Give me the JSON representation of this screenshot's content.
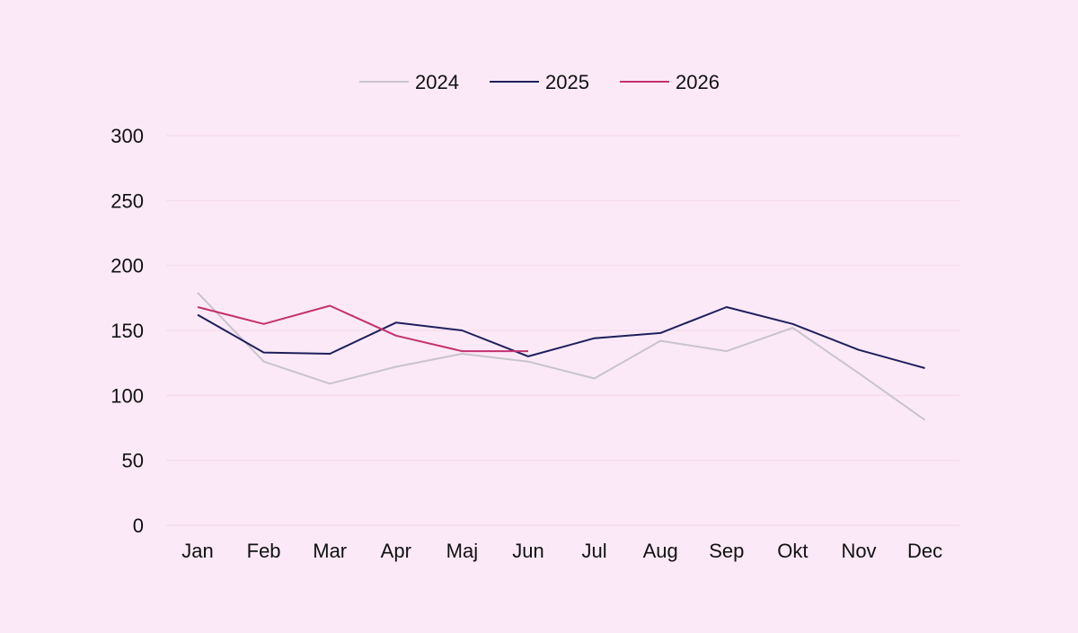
{
  "chart_data": {
    "type": "line",
    "categories": [
      "Jan",
      "Feb",
      "Mar",
      "Apr",
      "Maj",
      "Jun",
      "Jul",
      "Aug",
      "Sep",
      "Okt",
      "Nov",
      "Dec"
    ],
    "series": [
      {
        "name": "2024",
        "color": "#c9c4ca",
        "values": [
          179,
          126,
          109,
          122,
          132,
          126,
          113,
          142,
          134,
          152,
          117,
          81
        ]
      },
      {
        "name": "2025",
        "color": "#1f1f5c",
        "values": [
          162,
          133,
          132,
          156,
          150,
          130,
          144,
          148,
          168,
          155,
          135,
          121
        ]
      },
      {
        "name": "2026",
        "color": "#c4316f",
        "values": [
          168,
          155,
          169,
          146,
          134,
          134,
          null,
          null,
          null,
          null,
          null,
          null
        ]
      }
    ],
    "ylim": [
      0,
      300
    ],
    "yticks": [
      0,
      50,
      100,
      150,
      200,
      250,
      300
    ],
    "grid": true,
    "legend_position": "top-center",
    "xlabel": "",
    "ylabel": "",
    "title": ""
  }
}
